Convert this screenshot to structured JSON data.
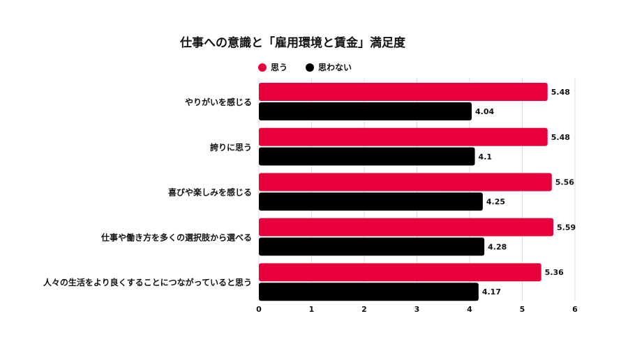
{
  "chart_data": {
    "type": "bar",
    "orientation": "horizontal",
    "title": "仕事への意識と「雇用環境と賃金」満足度",
    "categories": [
      "やりがいを感じる",
      "誇りに思う",
      "喜びや楽しみを感じる",
      "仕事や働き方を多くの選択肢から選べる",
      "人々の生活をより良くすることにつながっていると思う"
    ],
    "series": [
      {
        "name": "思う",
        "color": "#e8003d",
        "values": [
          5.48,
          5.48,
          5.56,
          5.59,
          5.36
        ]
      },
      {
        "name": "思わない",
        "color": "#000000",
        "values": [
          4.04,
          4.1,
          4.25,
          4.28,
          4.17
        ]
      }
    ],
    "xlim": [
      0,
      6
    ],
    "xticks": [
      "0",
      "1",
      "2",
      "3",
      "4",
      "5",
      "6"
    ],
    "data_labels": [
      [
        "5.48",
        "5.48",
        "5.56",
        "5.59",
        "5.36"
      ],
      [
        "4.04",
        "4.1",
        "4.25",
        "4.28",
        "4.17"
      ]
    ],
    "grid": true,
    "legend_position": "top-left"
  }
}
